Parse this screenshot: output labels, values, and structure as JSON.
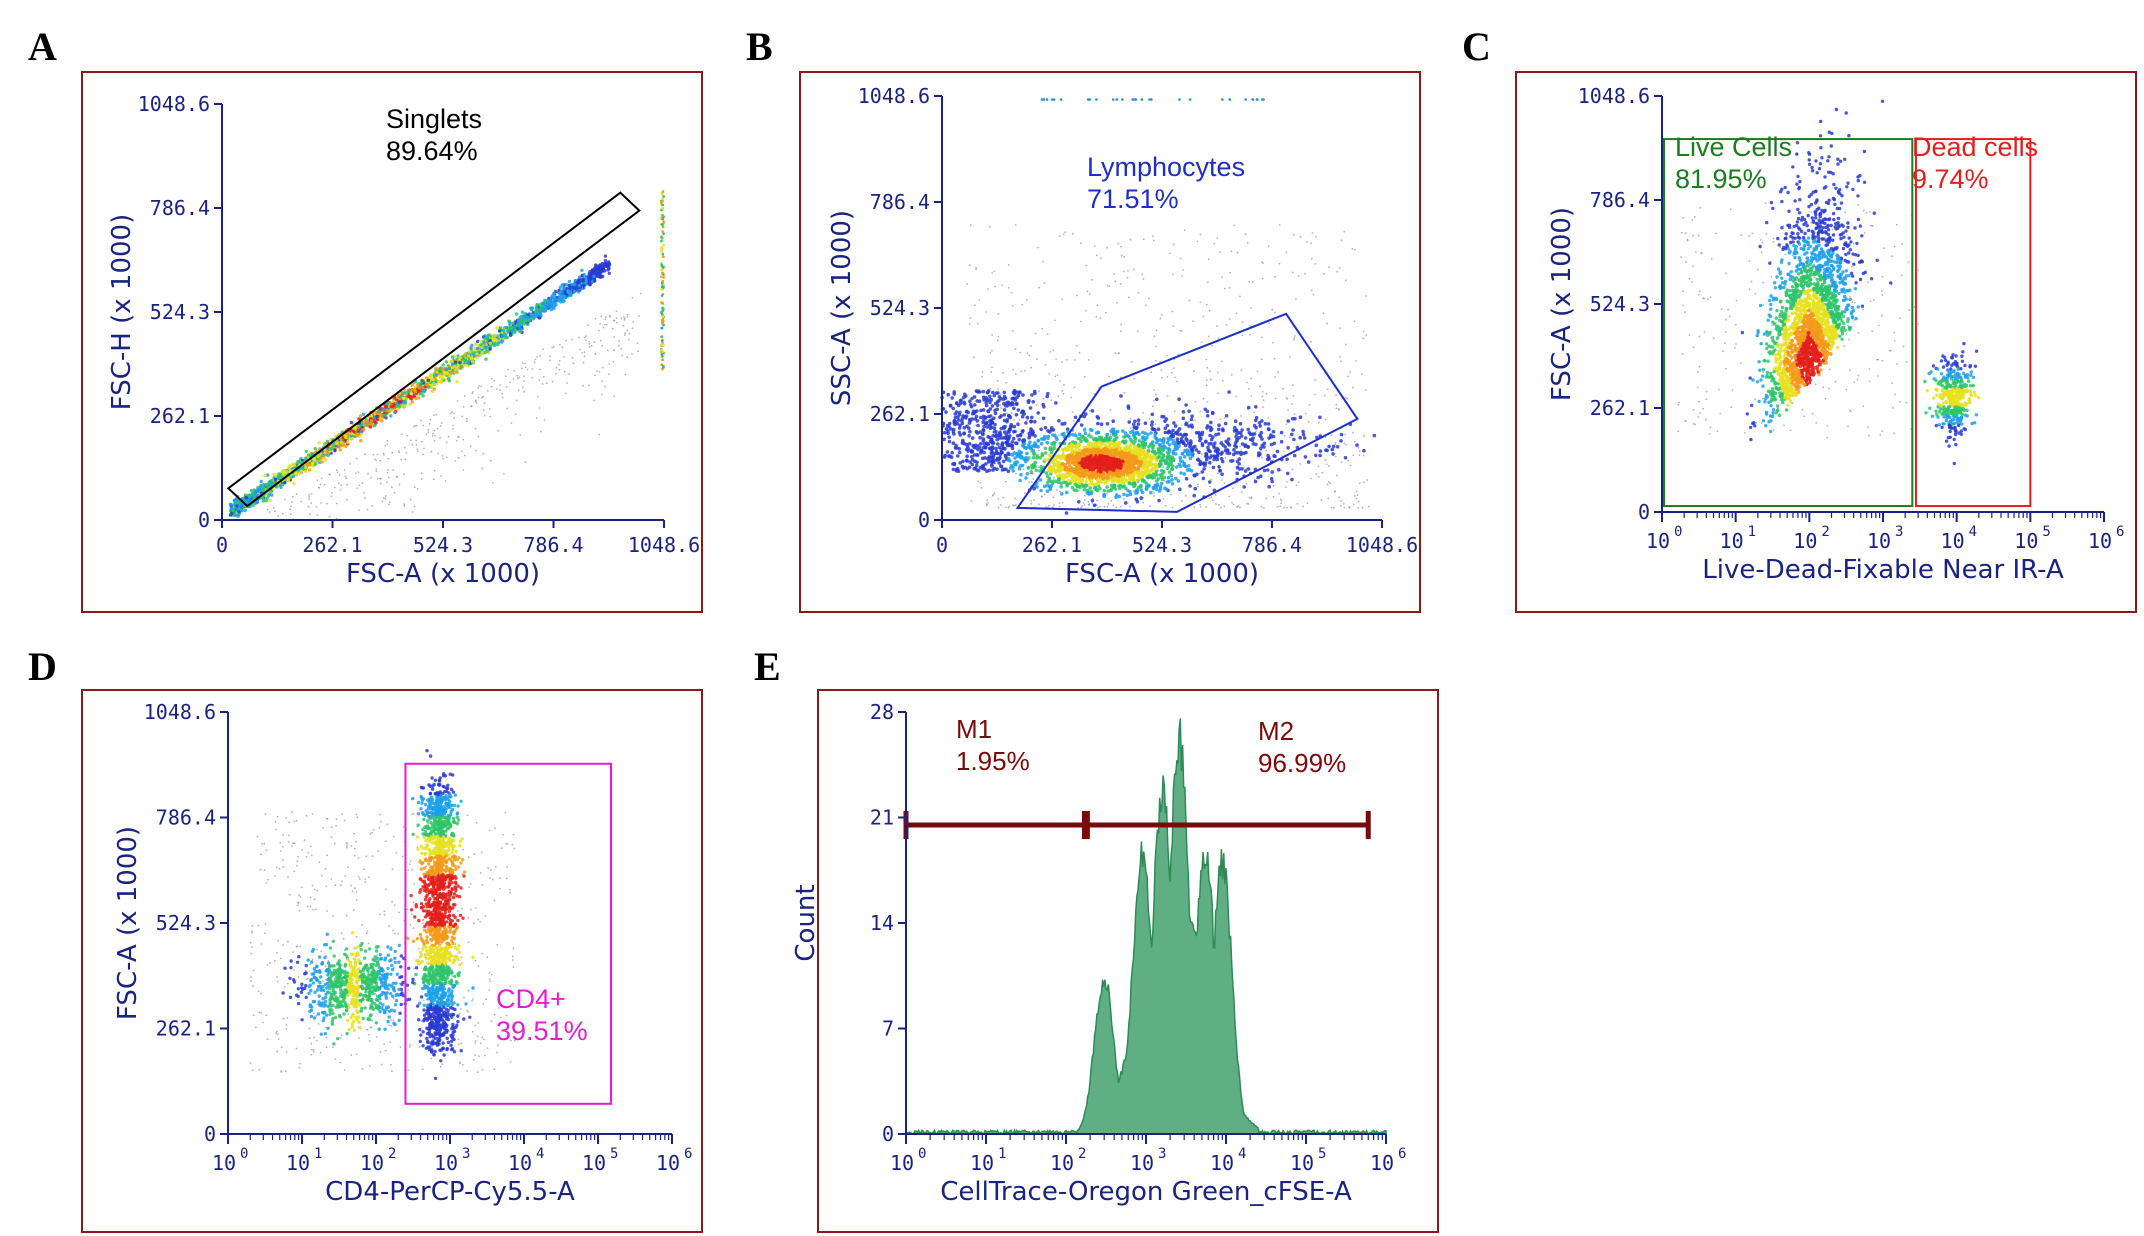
{
  "colors": {
    "frame": "#8b1a1a",
    "axis_text": "#1a237e",
    "singlets": "#000000",
    "lymphocytes": "#1f2fc4",
    "live": "#1e7b1e",
    "dead": "#e02020",
    "cd4": "#e020d0",
    "marker": "#7a0a0a",
    "histogram_fill": "#5fae84",
    "histogram_line": "#2e8b57"
  },
  "chart_data": [
    {
      "id": "A",
      "panel_label": "A",
      "type": "scatter",
      "subtype": "density-dot-plot",
      "xlabel": "FSC-A (x 1000)",
      "ylabel": "FSC-H (x 1000)",
      "x_scale": "linear",
      "xlim": [
        0,
        1048.6
      ],
      "ylim": [
        0,
        1048.6
      ],
      "x_ticks": [
        "0",
        "262.1",
        "524.3",
        "786.4",
        "1048.6"
      ],
      "y_ticks": [
        "0",
        "262.1",
        "524.3",
        "786.4",
        "1048.6"
      ],
      "population": "diagonal band from (20, 20) to (1000, 680)",
      "gate": {
        "name": "Singlets",
        "percent": "89.64%",
        "shape": "polygon",
        "vertices": [
          [
            15,
            80
          ],
          [
            60,
            35
          ],
          [
            990,
            780
          ],
          [
            945,
            825
          ]
        ]
      }
    },
    {
      "id": "B",
      "panel_label": "B",
      "type": "scatter",
      "subtype": "density-dot-plot",
      "xlabel": "FSC-A (x 1000)",
      "ylabel": "SSC-A (x 1000)",
      "x_scale": "linear",
      "xlim": [
        0,
        1048.6
      ],
      "ylim": [
        0,
        1048.6
      ],
      "x_ticks": [
        "0",
        "262.1",
        "524.3",
        "786.4",
        "1048.6"
      ],
      "y_ticks": [
        "0",
        "262.1",
        "524.3",
        "786.4",
        "1048.6"
      ],
      "population": "dense cluster centred near (390, 140)",
      "gate": {
        "name": "Lymphocytes",
        "percent": "71.51%",
        "shape": "polygon",
        "vertices": [
          [
            180,
            30
          ],
          [
            380,
            330
          ],
          [
            820,
            510
          ],
          [
            990,
            250
          ],
          [
            560,
            20
          ]
        ]
      }
    },
    {
      "id": "C",
      "panel_label": "C",
      "type": "scatter",
      "subtype": "density-dot-plot",
      "xlabel": "Live-Dead-Fixable Near IR-A",
      "ylabel": "FSC-A (x 1000)",
      "x_scale": "log",
      "xlim": [
        1,
        1000000
      ],
      "ylim": [
        0,
        1048.6
      ],
      "x_ticks": [
        "0",
        "1",
        "2",
        "3",
        "4",
        "5",
        "6"
      ],
      "x_tick_base": "10",
      "y_ticks": [
        "0",
        "262.1",
        "524.3",
        "786.4",
        "1048.6"
      ],
      "gates": [
        {
          "name": "Live Cells",
          "percent": "81.95%",
          "shape": "rectangle",
          "x_range": [
            1,
            2500
          ],
          "y_range": [
            15,
            940
          ]
        },
        {
          "name": "Dead cells",
          "percent": "9.74%",
          "shape": "rectangle",
          "x_range": [
            2800,
            100000
          ],
          "y_range": [
            15,
            940
          ]
        }
      ]
    },
    {
      "id": "D",
      "panel_label": "D",
      "type": "scatter",
      "subtype": "density-dot-plot",
      "xlabel": "CD4-PerCP-Cy5.5-A",
      "ylabel": "FSC-A (x 1000)",
      "x_scale": "log",
      "xlim": [
        1,
        1000000
      ],
      "ylim": [
        0,
        1048.6
      ],
      "x_ticks": [
        "0",
        "1",
        "2",
        "3",
        "4",
        "5",
        "6"
      ],
      "x_tick_base": "10",
      "y_ticks": [
        "0",
        "262.1",
        "524.3",
        "786.4",
        "1048.6"
      ],
      "gate": {
        "name": "CD4+",
        "percent": "39.51%",
        "shape": "rectangle",
        "x_range": [
          250,
          150000
        ],
        "y_range": [
          75,
          920
        ]
      }
    },
    {
      "id": "E",
      "panel_label": "E",
      "type": "area",
      "subtype": "histogram",
      "xlabel": "CellTrace-Oregon Green_cFSE-A",
      "ylabel": "Count",
      "x_scale": "log",
      "xlim": [
        1,
        1000000
      ],
      "ylim": [
        0,
        28
      ],
      "x_ticks": [
        "0",
        "1",
        "2",
        "3",
        "4",
        "5",
        "6"
      ],
      "x_tick_base": "10",
      "y_ticks": [
        "0",
        "7",
        "14",
        "21",
        "28"
      ],
      "peaks": [
        {
          "x": 300,
          "count": 11
        },
        {
          "x": 900,
          "count": 20
        },
        {
          "x": 1600,
          "count": 24
        },
        {
          "x": 2600,
          "count": 28
        },
        {
          "x": 5500,
          "count": 20
        },
        {
          "x": 9000,
          "count": 19
        }
      ],
      "markers": [
        {
          "name": "M1",
          "percent": "1.95%",
          "range": [
            1,
            170
          ],
          "y": 20.5
        },
        {
          "name": "M2",
          "percent": "96.99%",
          "range": [
            185,
            600000
          ],
          "y": 20.5
        }
      ]
    }
  ]
}
